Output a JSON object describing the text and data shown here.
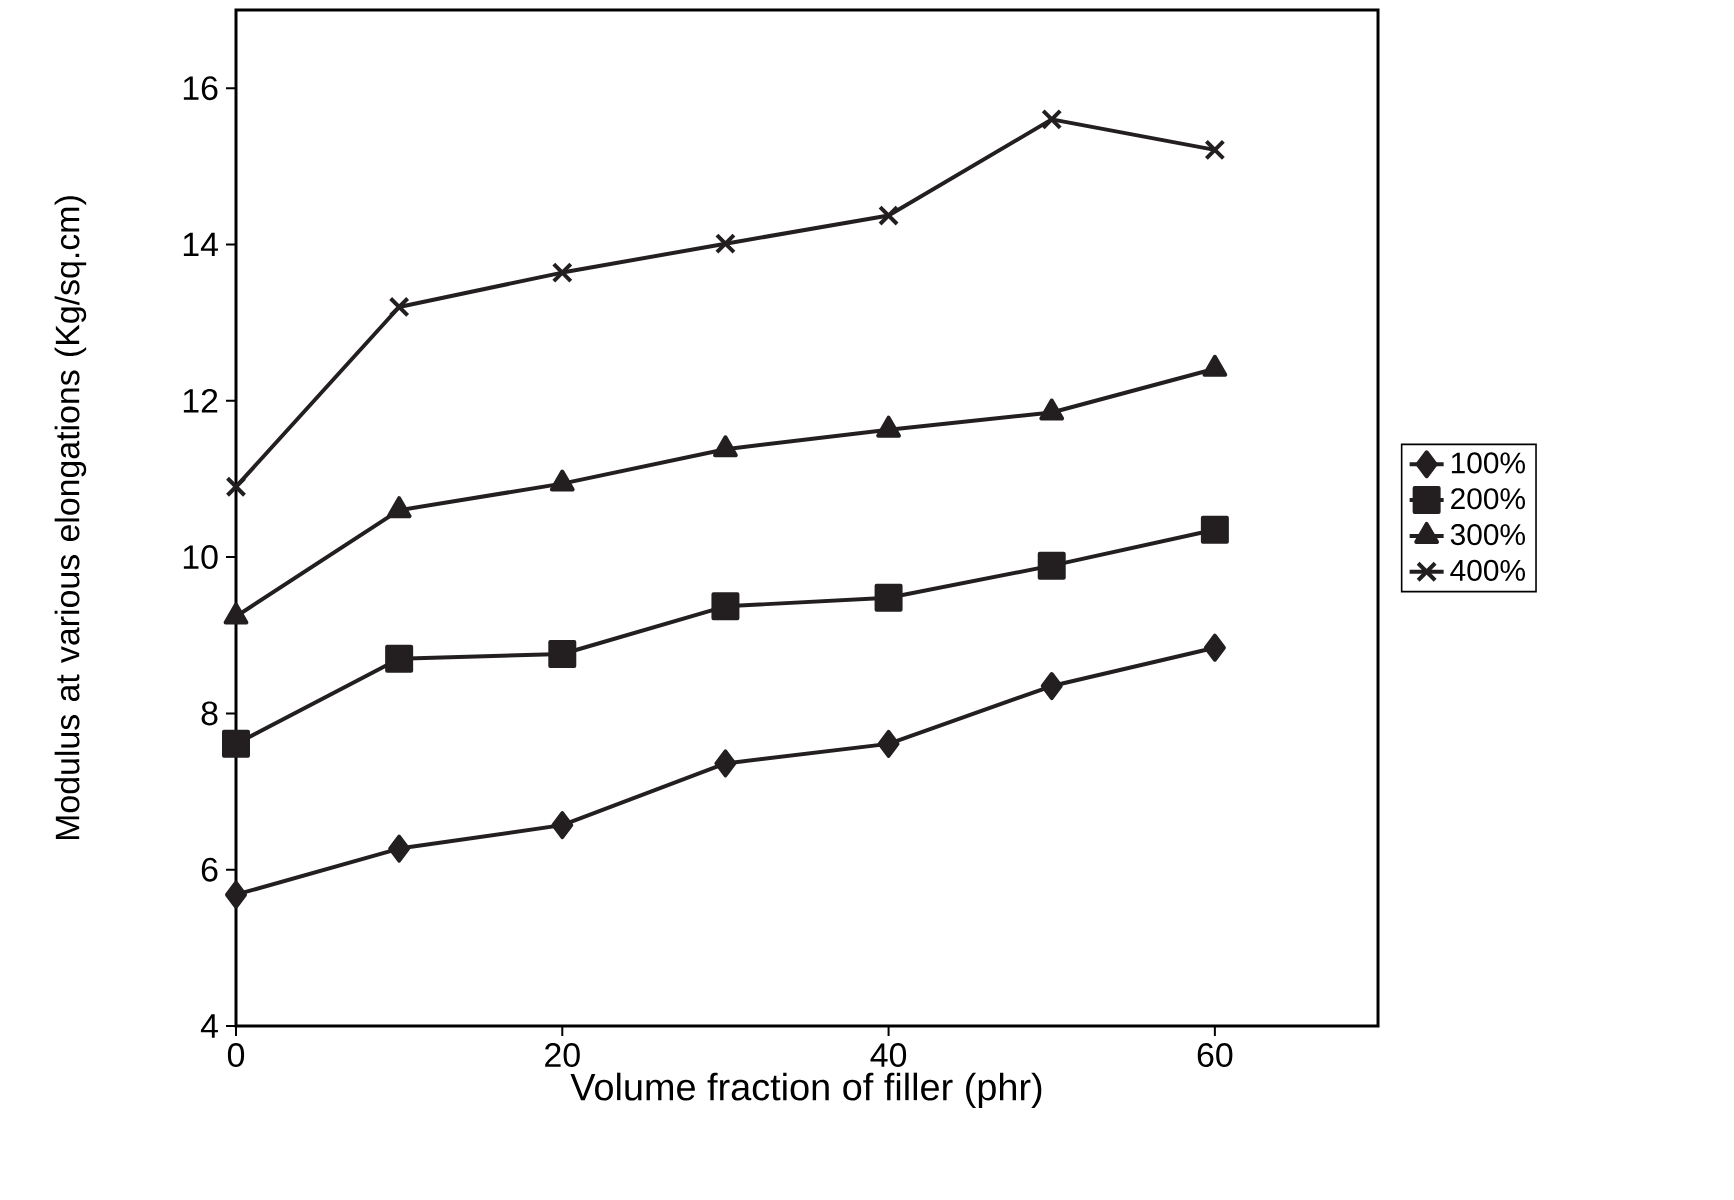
{
  "chart_data": {
    "type": "line",
    "xlabel": "Volume fraction of filler (phr)",
    "ylabel": "Modulus at various elongations (Kg/sq.cm)",
    "x": [
      0,
      10,
      20,
      30,
      40,
      50,
      60
    ],
    "xlim": [
      0,
      70
    ],
    "xticks": [
      0,
      20,
      40,
      60
    ],
    "ylim": [
      4,
      17
    ],
    "yticks": [
      4,
      6,
      8,
      10,
      12,
      14,
      16
    ],
    "grid": false,
    "legend": "right",
    "line_style": "solid",
    "series": [
      {
        "name": "100%",
        "color": "#231f20",
        "marker": "diamond",
        "values": [
          5.68,
          6.27,
          6.57,
          7.36,
          7.61,
          8.35,
          8.84
        ]
      },
      {
        "name": "200%",
        "color": "#231f20",
        "marker": "square",
        "values": [
          7.61,
          8.7,
          8.76,
          9.37,
          9.48,
          9.89,
          10.35
        ]
      },
      {
        "name": "300%",
        "color": "#231f20",
        "marker": "triangle",
        "values": [
          9.24,
          10.6,
          10.94,
          11.38,
          11.63,
          11.85,
          12.41
        ]
      },
      {
        "name": "400%",
        "color": "#231f20",
        "marker": "cross",
        "values": [
          10.9,
          13.2,
          13.64,
          14.01,
          14.37,
          15.6,
          15.21
        ]
      }
    ]
  }
}
